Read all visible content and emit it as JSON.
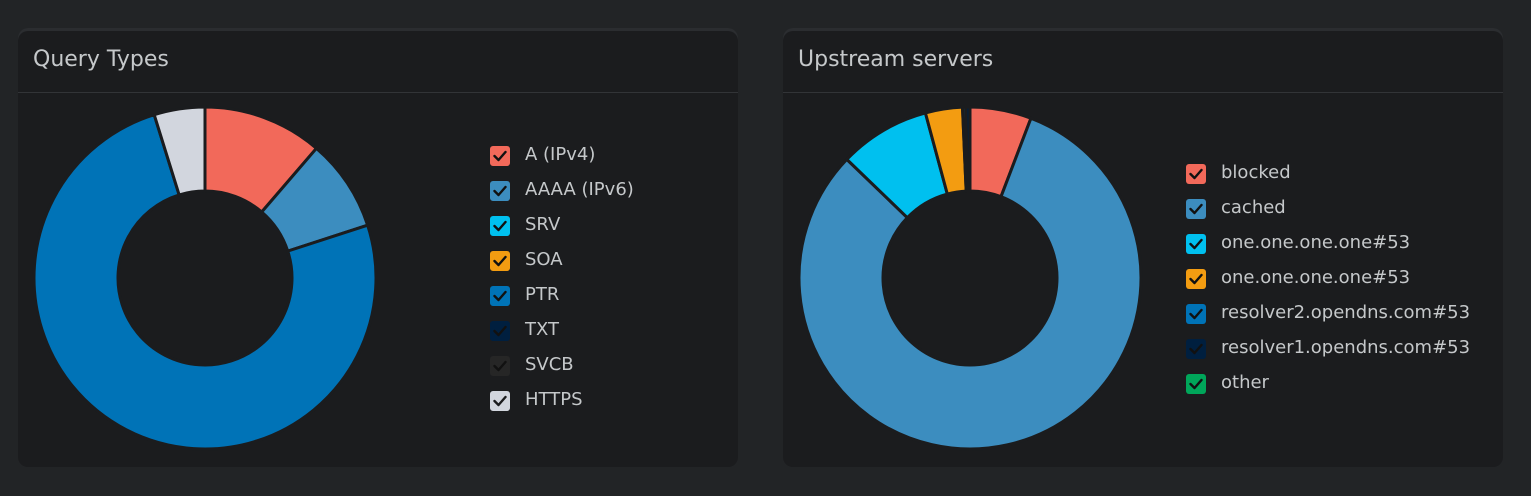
{
  "panels": [
    {
      "title": "Query Types",
      "legend": [
        {
          "label": "A (IPv4)",
          "color": "#f2695a"
        },
        {
          "label": "AAAA (IPv6)",
          "color": "#3c8dbf"
        },
        {
          "label": "SRV",
          "color": "#00c0ef"
        },
        {
          "label": "SOA",
          "color": "#f39c11"
        },
        {
          "label": "PTR",
          "color": "#0073b7"
        },
        {
          "label": "TXT",
          "color": "#001f3f"
        },
        {
          "label": "SVCB",
          "color": "#262626"
        },
        {
          "label": "HTTPS",
          "color": "#d2d6de"
        }
      ]
    },
    {
      "title": "Upstream servers",
      "legend": [
        {
          "label": "blocked",
          "color": "#f2695a"
        },
        {
          "label": "cached",
          "color": "#3c8dbf"
        },
        {
          "label": "one.one.one.one#53",
          "color": "#00c0ef"
        },
        {
          "label": "one.one.one.one#53",
          "color": "#f39c11"
        },
        {
          "label": "resolver2.opendns.com#53",
          "color": "#0073b7"
        },
        {
          "label": "resolver1.opendns.com#53",
          "color": "#001f3f"
        },
        {
          "label": "other",
          "color": "#00a65a"
        }
      ]
    }
  ],
  "chart_data": [
    {
      "type": "pie",
      "title": "Query Types",
      "categories": [
        "A (IPv4)",
        "AAAA (IPv6)",
        "SRV",
        "SOA",
        "PTR",
        "TXT",
        "SVCB",
        "HTTPS"
      ],
      "values": [
        11.3,
        8.7,
        0,
        0,
        75.2,
        0,
        0,
        4.8
      ],
      "colors": [
        "#f2695a",
        "#3c8dbf",
        "#00c0ef",
        "#f39c11",
        "#0073b7",
        "#001f3f",
        "#262626",
        "#d2d6de"
      ],
      "doughnut": true
    },
    {
      "type": "pie",
      "title": "Upstream servers",
      "categories": [
        "blocked",
        "cached",
        "one.one.one.one#53",
        "one.one.one.one#53",
        "resolver2.opendns.com#53",
        "resolver1.opendns.com#53",
        "other"
      ],
      "values": [
        5.8,
        81.4,
        8.6,
        3.5,
        0.3,
        0.4,
        0
      ],
      "colors": [
        "#f2695a",
        "#3c8dbf",
        "#00c0ef",
        "#f39c11",
        "#0073b7",
        "#001f3f",
        "#00a65a"
      ],
      "doughnut": true
    }
  ]
}
